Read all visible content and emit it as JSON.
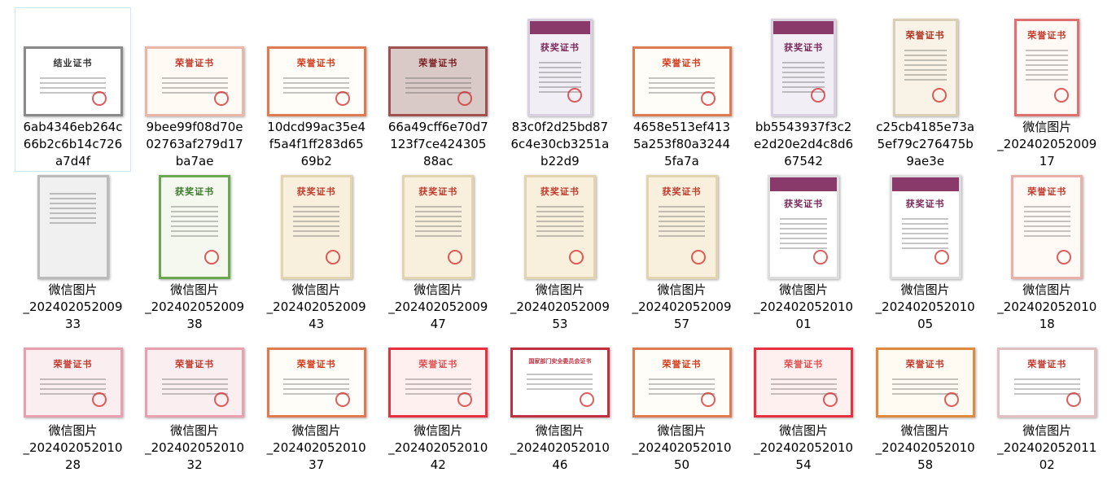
{
  "selected_index": 0,
  "files": [
    {
      "name": [
        "6ab4346eb264c",
        "66b2c6b14c726",
        "a7d4f"
      ],
      "cert_title": "结业证书",
      "shape": "land",
      "bg": "#ffffff",
      "border": "#8a8a8a",
      "title_color": "#333333"
    },
    {
      "name": [
        "9bee99f08d70e",
        "02763af279d17",
        "ba7ae"
      ],
      "cert_title": "荣誉证书",
      "shape": "land",
      "bg": "#fffaf4",
      "border": "#e8b7a8",
      "title_color": "#c0392b"
    },
    {
      "name": [
        "10dcd99ac35e4",
        "f5a4f1ff283d65",
        "69b2"
      ],
      "cert_title": "荣誉证书",
      "shape": "land",
      "bg": "#fffdf8",
      "border": "#e07a50",
      "title_color": "#d03a1a"
    },
    {
      "name": [
        "66a49cff6e70d7",
        "123f7ce424305",
        "88ac"
      ],
      "cert_title": "荣誉证书",
      "shape": "land",
      "bg": "#d9c9c7",
      "border": "#a05050",
      "title_color": "#7a2020"
    },
    {
      "name": [
        "83c0f2d25bd87",
        "6c4e30cb3251a",
        "b22d9"
      ],
      "cert_title": "获奖证书",
      "shape": "port",
      "bg": "#f2eef5",
      "border": "#d8d0de",
      "title_color": "#7a2a5a",
      "band": "#8a3a6a"
    },
    {
      "name": [
        "4658e513ef413",
        "5a253f80a3244",
        "5fa7a"
      ],
      "cert_title": "荣誉证书",
      "shape": "land",
      "bg": "#fffdf8",
      "border": "#e07a50",
      "title_color": "#d03a1a"
    },
    {
      "name": [
        "bb5543937f3c2",
        "e2d20e2d4c8d6",
        "67542"
      ],
      "cert_title": "获奖证书",
      "shape": "port",
      "bg": "#f2eef5",
      "border": "#d8d0de",
      "title_color": "#7a2a5a",
      "band": "#8a3a6a"
    },
    {
      "name": [
        "c25cb4185e73a",
        "5ef79c276475b",
        "9ae3e"
      ],
      "cert_title": "荣誉证书",
      "shape": "port",
      "bg": "#f8f3e6",
      "border": "#d9cfb5",
      "title_color": "#b03020"
    },
    {
      "name": [
        "微信图片",
        "_202402052009",
        "17"
      ],
      "cert_title": "荣誉证书",
      "shape": "port",
      "bg": "#fffaf6",
      "border": "#e07070",
      "title_color": "#c0392b"
    },
    {
      "name": [
        "微信图片",
        "_202402052009",
        "33"
      ],
      "cert_title": "",
      "shape": "port2",
      "bg": "#f0f0f0",
      "border": "#bbbbbb",
      "title_color": "#555555"
    },
    {
      "name": [
        "微信图片",
        "_202402052009",
        "38"
      ],
      "cert_title": "获奖证书",
      "shape": "port2",
      "bg": "#f4f8ee",
      "border": "#6aa84f",
      "title_color": "#3a7a2a"
    },
    {
      "name": [
        "微信图片",
        "_202402052009",
        "43"
      ],
      "cert_title": "获奖证书",
      "shape": "port2",
      "bg": "#f8f0dc",
      "border": "#e3d4b0",
      "title_color": "#c0392b"
    },
    {
      "name": [
        "微信图片",
        "_202402052009",
        "47"
      ],
      "cert_title": "获奖证书",
      "shape": "port2",
      "bg": "#f8f0dc",
      "border": "#e3d4b0",
      "title_color": "#c0392b"
    },
    {
      "name": [
        "微信图片",
        "_202402052009",
        "53"
      ],
      "cert_title": "获奖证书",
      "shape": "port2",
      "bg": "#f8f0dc",
      "border": "#e3d4b0",
      "title_color": "#c0392b"
    },
    {
      "name": [
        "微信图片",
        "_202402052009",
        "57"
      ],
      "cert_title": "获奖证书",
      "shape": "port2",
      "bg": "#f8f0dc",
      "border": "#e3d4b0",
      "title_color": "#c0392b"
    },
    {
      "name": [
        "微信图片",
        "_202402052010",
        "01"
      ],
      "cert_title": "获奖证书",
      "shape": "port2",
      "bg": "#ffffff",
      "border": "#dddddd",
      "title_color": "#7a2a5a",
      "band": "#8a3a6a"
    },
    {
      "name": [
        "微信图片",
        "_202402052010",
        "05"
      ],
      "cert_title": "获奖证书",
      "shape": "port2",
      "bg": "#ffffff",
      "border": "#dddddd",
      "title_color": "#7a2a5a",
      "band": "#8a3a6a"
    },
    {
      "name": [
        "微信图片",
        "_202402052010",
        "18"
      ],
      "cert_title": "荣誉证书",
      "shape": "port2",
      "bg": "#fffaf6",
      "border": "#e8b0a8",
      "title_color": "#c0392b"
    },
    {
      "name": [
        "微信图片",
        "_202402052010",
        "28"
      ],
      "cert_title": "荣誉证书",
      "shape": "land",
      "bg": "#fbeef0",
      "border": "#e8a0b0",
      "title_color": "#c0392b"
    },
    {
      "name": [
        "微信图片",
        "_202402052010",
        "32"
      ],
      "cert_title": "荣誉证书",
      "shape": "land",
      "bg": "#fbeef0",
      "border": "#e8a0b0",
      "title_color": "#c0392b"
    },
    {
      "name": [
        "微信图片",
        "_202402052010",
        "37"
      ],
      "cert_title": "荣誉证书",
      "shape": "land",
      "bg": "#fffdf8",
      "border": "#e07a50",
      "title_color": "#d03a1a"
    },
    {
      "name": [
        "微信图片",
        "_202402052010",
        "42"
      ],
      "cert_title": "荣誉证书",
      "shape": "land",
      "bg": "#fff0f0",
      "border": "#e83040",
      "title_color": "#e05050"
    },
    {
      "name": [
        "微信图片",
        "_202402052010",
        "46"
      ],
      "cert_title": "国家部门安全委员会证书",
      "shape": "land",
      "bg": "#ffffff",
      "border": "#c03040",
      "title_color": "#c03040"
    },
    {
      "name": [
        "微信图片",
        "_202402052010",
        "50"
      ],
      "cert_title": "荣誉证书",
      "shape": "land",
      "bg": "#fffdf8",
      "border": "#e07a50",
      "title_color": "#d03a1a"
    },
    {
      "name": [
        "微信图片",
        "_202402052010",
        "54"
      ],
      "cert_title": "荣誉证书",
      "shape": "land",
      "bg": "#fff0f0",
      "border": "#e83040",
      "title_color": "#e05050"
    },
    {
      "name": [
        "微信图片",
        "_202402052010",
        "58"
      ],
      "cert_title": "荣誉证书",
      "shape": "land",
      "bg": "#fffaf2",
      "border": "#e08a40",
      "title_color": "#c0392b"
    },
    {
      "name": [
        "微信图片",
        "_202402052011",
        "02"
      ],
      "cert_title": "荣誉证书",
      "shape": "land",
      "bg": "#ffffff",
      "border": "#e0c0c0",
      "title_color": "#c0392b"
    }
  ]
}
